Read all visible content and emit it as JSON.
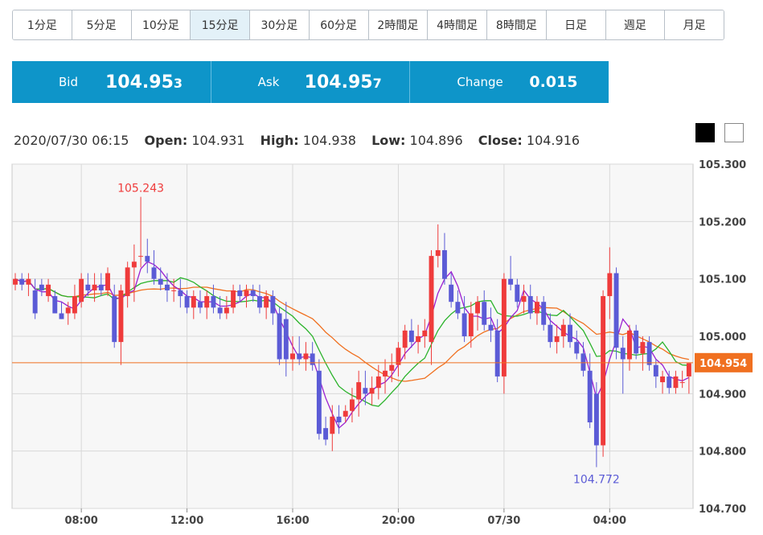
{
  "timeframes": [
    "1分足",
    "5分足",
    "10分足",
    "15分足",
    "30分足",
    "60分足",
    "2時間足",
    "4時間足",
    "8時間足",
    "日足",
    "週足",
    "月足"
  ],
  "active_timeframe": "15分足",
  "quote": {
    "bid_label": "Bid",
    "bid_main": "104.95",
    "bid_pip": "3",
    "ask_label": "Ask",
    "ask_main": "104.95",
    "ask_pip": "7",
    "change_label": "Change",
    "change_value": "0.015",
    "bar_color": "#0e95c9"
  },
  "ohlc": {
    "datetime": "2020/07/30 06:15",
    "open_label": "Open:",
    "open": "104.931",
    "high_label": "High:",
    "high": "104.938",
    "low_label": "Low:",
    "low": "104.896",
    "close_label": "Close:",
    "close": "104.916"
  },
  "theme_options": [
    "dark",
    "light"
  ],
  "chart_data": {
    "type": "candlestick",
    "y_axis": {
      "min": 104.7,
      "max": 105.3,
      "ticks": [
        "105.300",
        "105.200",
        "105.100",
        "105.000",
        "104.900",
        "104.800",
        "104.700"
      ],
      "side": "right"
    },
    "x_ticks": [
      {
        "label": "08:00",
        "index": 10
      },
      {
        "label": "12:00",
        "index": 26
      },
      {
        "label": "16:00",
        "index": 42
      },
      {
        "label": "20:00",
        "index": 58
      },
      {
        "label": "07/30",
        "index": 74
      },
      {
        "label": "04:00",
        "index": 90
      }
    ],
    "current_price": "104.954",
    "high_marker": {
      "label": "105.243",
      "value": 105.243,
      "index": 19
    },
    "low_marker": {
      "label": "104.772",
      "value": 104.772,
      "index": 88
    },
    "colors": {
      "up": "#ef3b3b",
      "down": "#5b5bd6",
      "ma_short": "#9b1fd1",
      "ma_mid": "#2bb32b",
      "ma_long": "#f07020",
      "price_line": "#f07020",
      "grid": "#d8d8d8",
      "plot_bg": "#f7f7f7"
    },
    "candles": [
      [
        105.09,
        105.11,
        105.08,
        105.1
      ],
      [
        105.1,
        105.11,
        105.08,
        105.09
      ],
      [
        105.09,
        105.11,
        105.07,
        105.1
      ],
      [
        105.08,
        105.1,
        105.03,
        105.04
      ],
      [
        105.09,
        105.1,
        105.07,
        105.08
      ],
      [
        105.07,
        105.1,
        105.06,
        105.09
      ],
      [
        105.07,
        105.08,
        105.04,
        105.04
      ],
      [
        105.04,
        105.06,
        105.03,
        105.03
      ],
      [
        105.04,
        105.06,
        105.02,
        105.05
      ],
      [
        105.04,
        105.09,
        105.03,
        105.07
      ],
      [
        105.06,
        105.11,
        105.05,
        105.1
      ],
      [
        105.09,
        105.11,
        105.07,
        105.08
      ],
      [
        105.08,
        105.11,
        105.06,
        105.09
      ],
      [
        105.09,
        105.11,
        105.07,
        105.08
      ],
      [
        105.08,
        105.12,
        105.07,
        105.11
      ],
      [
        105.07,
        105.09,
        104.98,
        104.99
      ],
      [
        104.99,
        105.09,
        104.95,
        105.08
      ],
      [
        105.07,
        105.13,
        105.05,
        105.12
      ],
      [
        105.12,
        105.16,
        105.06,
        105.13
      ],
      [
        105.14,
        105.243,
        105.12,
        105.14
      ],
      [
        105.14,
        105.17,
        105.11,
        105.13
      ],
      [
        105.12,
        105.15,
        105.09,
        105.1
      ],
      [
        105.1,
        105.12,
        105.08,
        105.09
      ],
      [
        105.09,
        105.11,
        105.06,
        105.08
      ],
      [
        105.08,
        105.1,
        105.06,
        105.08
      ],
      [
        105.08,
        105.1,
        105.05,
        105.07
      ],
      [
        105.07,
        105.08,
        105.04,
        105.05
      ],
      [
        105.05,
        105.08,
        105.03,
        105.07
      ],
      [
        105.06,
        105.08,
        105.04,
        105.05
      ],
      [
        105.05,
        105.08,
        105.03,
        105.07
      ],
      [
        105.07,
        105.09,
        105.04,
        105.05
      ],
      [
        105.05,
        105.07,
        105.03,
        105.04
      ],
      [
        105.04,
        105.07,
        105.03,
        105.05
      ],
      [
        105.05,
        105.09,
        105.04,
        105.08
      ],
      [
        105.08,
        105.09,
        105.06,
        105.07
      ],
      [
        105.07,
        105.09,
        105.05,
        105.08
      ],
      [
        105.08,
        105.09,
        105.06,
        105.07
      ],
      [
        105.07,
        105.09,
        105.04,
        105.05
      ],
      [
        105.05,
        105.08,
        105.03,
        105.07
      ],
      [
        105.07,
        105.08,
        105.02,
        105.04
      ],
      [
        105.04,
        105.05,
        104.95,
        104.96
      ],
      [
        105.03,
        105.06,
        104.93,
        104.96
      ],
      [
        104.96,
        105.0,
        104.94,
        104.97
      ],
      [
        104.97,
        105.0,
        104.95,
        104.96
      ],
      [
        104.96,
        104.99,
        104.94,
        104.97
      ],
      [
        104.97,
        104.99,
        104.94,
        104.95
      ],
      [
        104.94,
        104.96,
        104.82,
        104.83
      ],
      [
        104.84,
        104.86,
        104.81,
        104.82
      ],
      [
        104.83,
        104.88,
        104.8,
        104.86
      ],
      [
        104.86,
        104.88,
        104.83,
        104.85
      ],
      [
        104.86,
        104.88,
        104.85,
        104.87
      ],
      [
        104.87,
        104.91,
        104.85,
        104.89
      ],
      [
        104.89,
        104.94,
        104.86,
        104.92
      ],
      [
        104.91,
        104.94,
        104.88,
        104.9
      ],
      [
        104.9,
        104.93,
        104.88,
        104.91
      ],
      [
        104.91,
        104.95,
        104.89,
        104.93
      ],
      [
        104.93,
        104.96,
        104.9,
        104.94
      ],
      [
        104.94,
        104.97,
        104.92,
        104.95
      ],
      [
        104.95,
        104.99,
        104.93,
        104.98
      ],
      [
        104.98,
        105.02,
        104.96,
        105.01
      ],
      [
        105.01,
        105.03,
        104.98,
        104.99
      ],
      [
        104.99,
        105.02,
        104.97,
        105.0
      ],
      [
        105.0,
        105.03,
        104.98,
        105.01
      ],
      [
        104.99,
        105.15,
        104.95,
        105.14
      ],
      [
        105.14,
        105.195,
        105.12,
        105.15
      ],
      [
        105.15,
        105.18,
        105.09,
        105.1
      ],
      [
        105.09,
        105.11,
        105.05,
        105.06
      ],
      [
        105.06,
        105.08,
        105.03,
        105.04
      ],
      [
        105.04,
        105.07,
        104.99,
        105.0
      ],
      [
        105.0,
        105.06,
        104.98,
        105.04
      ],
      [
        105.04,
        105.07,
        105.01,
        105.06
      ],
      [
        105.06,
        105.08,
        105.01,
        105.02
      ],
      [
        105.02,
        105.05,
        104.99,
        105.01
      ],
      [
        105.01,
        105.03,
        104.92,
        104.93
      ],
      [
        104.93,
        105.11,
        104.9,
        105.1
      ],
      [
        105.1,
        105.14,
        105.08,
        105.09
      ],
      [
        105.09,
        105.1,
        105.05,
        105.06
      ],
      [
        105.06,
        105.09,
        105.04,
        105.07
      ],
      [
        105.07,
        105.09,
        105.03,
        105.04
      ],
      [
        105.04,
        105.07,
        105.02,
        105.06
      ],
      [
        105.06,
        105.07,
        105.01,
        105.02
      ],
      [
        105.02,
        105.04,
        104.98,
        104.99
      ],
      [
        104.99,
        105.02,
        104.97,
        105.0
      ],
      [
        105.0,
        105.03,
        104.98,
        105.02
      ],
      [
        105.02,
        105.04,
        104.98,
        104.99
      ],
      [
        104.99,
        105.01,
        104.96,
        104.97
      ],
      [
        104.97,
        104.99,
        104.93,
        104.94
      ],
      [
        104.94,
        104.97,
        104.84,
        104.85
      ],
      [
        104.9,
        104.92,
        104.772,
        104.81
      ],
      [
        104.81,
        105.08,
        104.79,
        105.07
      ],
      [
        105.07,
        105.155,
        105.03,
        105.11
      ],
      [
        105.11,
        105.12,
        104.96,
        104.98
      ],
      [
        104.98,
        105.0,
        104.9,
        104.96
      ],
      [
        104.96,
        105.02,
        104.94,
        105.01
      ],
      [
        105.01,
        105.02,
        104.96,
        104.97
      ],
      [
        104.97,
        105.0,
        104.94,
        104.99
      ],
      [
        104.99,
        105.0,
        104.94,
        104.95
      ],
      [
        104.95,
        104.96,
        104.91,
        104.93
      ],
      [
        104.92,
        104.94,
        104.9,
        104.93
      ],
      [
        104.93,
        104.94,
        104.9,
        104.91
      ],
      [
        104.91,
        104.94,
        104.9,
        104.93
      ],
      [
        104.92,
        104.94,
        104.91,
        104.92
      ],
      [
        104.93,
        104.954,
        104.9,
        104.953
      ]
    ]
  }
}
